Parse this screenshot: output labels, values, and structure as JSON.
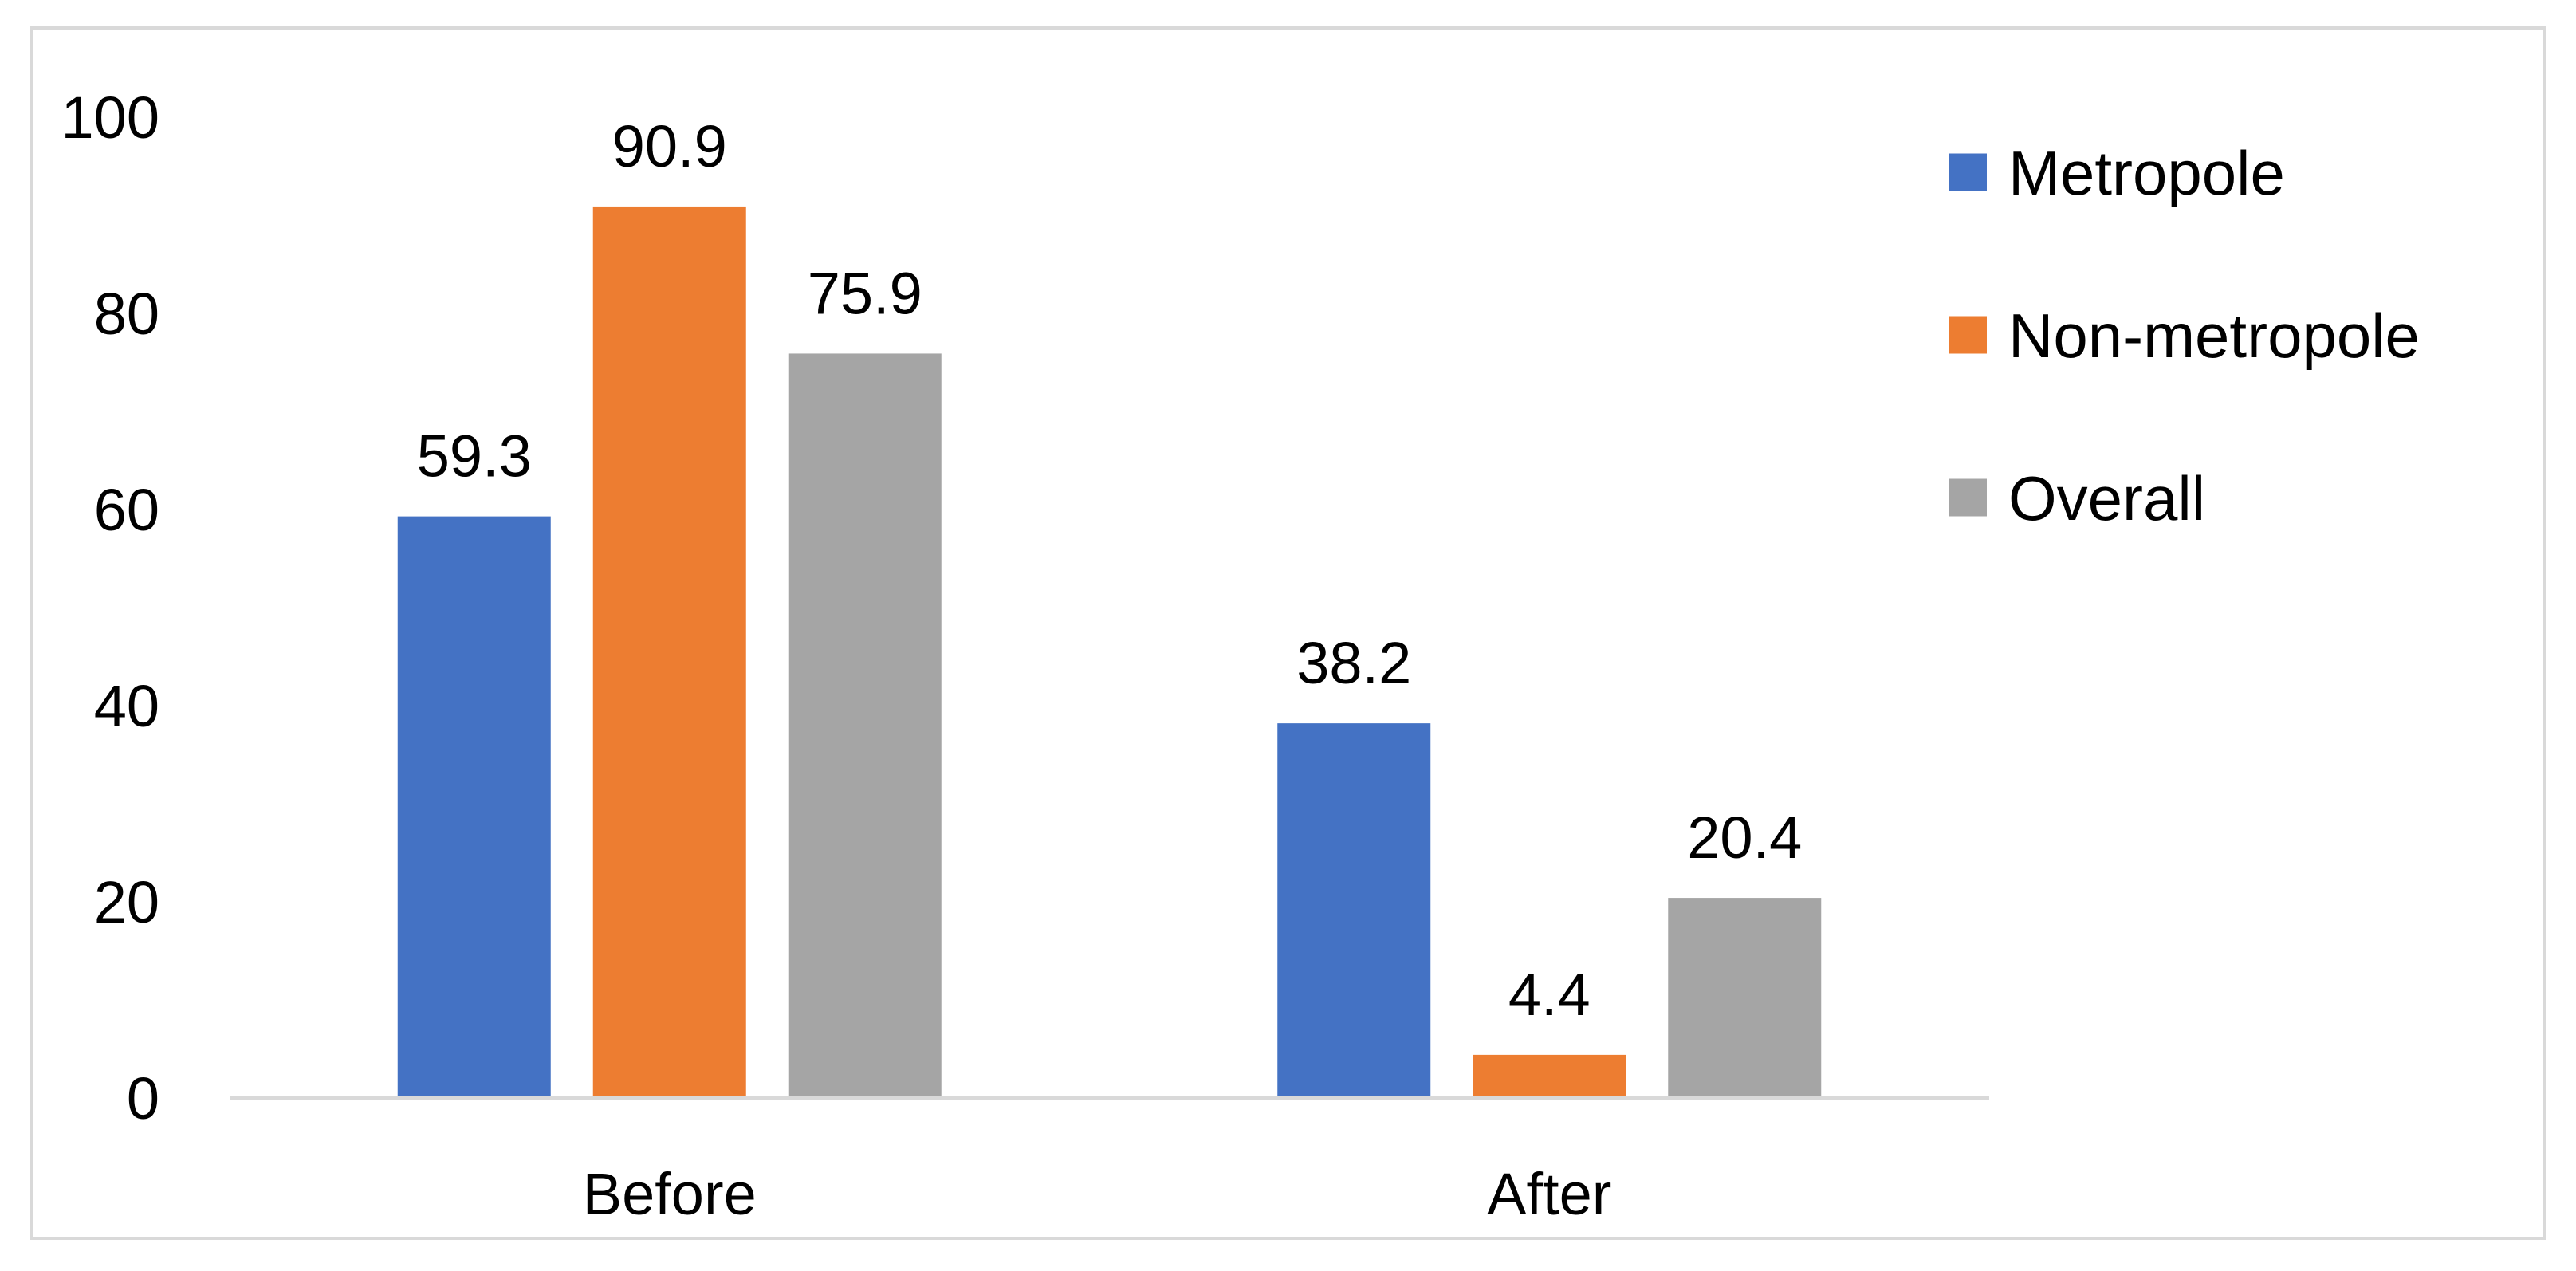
{
  "chart_data": {
    "type": "bar",
    "categories": [
      "Before",
      "After"
    ],
    "series": [
      {
        "name": "Metropole",
        "values": [
          59.3,
          38.2
        ],
        "labels": [
          "59.3",
          "38.2"
        ],
        "color": "#4472C4"
      },
      {
        "name": "Non-metropole",
        "values": [
          90.9,
          4.4
        ],
        "labels": [
          "90.9",
          "4.4"
        ],
        "color": "#ED7D31"
      },
      {
        "name": "Overall",
        "values": [
          75.9,
          20.4
        ],
        "labels": [
          "75.9",
          "20.4"
        ],
        "color": "#A5A5A5"
      }
    ],
    "ylim": [
      0,
      100
    ],
    "yticks": [
      "0",
      "20",
      "40",
      "60",
      "80",
      "100"
    ],
    "xlabel": "",
    "ylabel": "",
    "title": "",
    "grid": false,
    "legend_position": "right",
    "axis_color": "#d9d9d9"
  }
}
